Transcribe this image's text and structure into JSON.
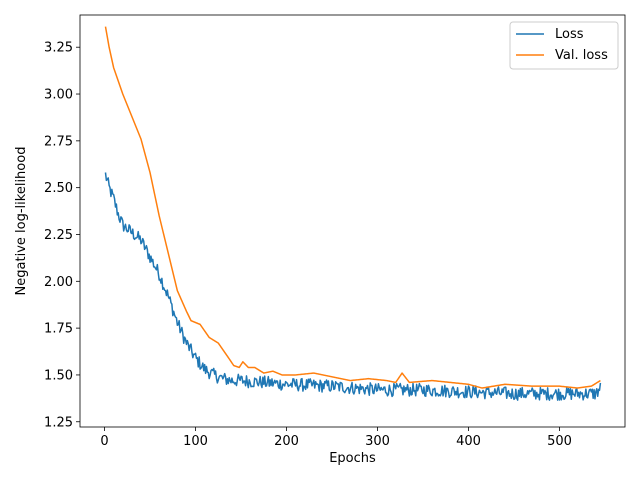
{
  "chart_data": {
    "type": "line",
    "title": "",
    "xlabel": "Epochs",
    "ylabel": "Negative log-likelihood",
    "xlim": [
      -27,
      572
    ],
    "ylim": [
      1.222,
      3.422
    ],
    "xticks": [
      0,
      100,
      200,
      300,
      400,
      500
    ],
    "yticks": [
      1.25,
      1.5,
      1.75,
      2.0,
      2.25,
      2.5,
      2.75,
      3.0,
      3.25
    ],
    "ytick_labels": [
      "1.25",
      "1.50",
      "1.75",
      "2.00",
      "2.25",
      "2.50",
      "2.75",
      "3.00",
      "3.25"
    ],
    "grid": false,
    "legend": "top-right",
    "series": [
      {
        "name": "Loss",
        "color": "#1f77b4",
        "noise_amplitude": 0.035,
        "anchors": [
          [
            1,
            2.57
          ],
          [
            5,
            2.5
          ],
          [
            10,
            2.44
          ],
          [
            15,
            2.36
          ],
          [
            20,
            2.3
          ],
          [
            30,
            2.26
          ],
          [
            40,
            2.22
          ],
          [
            50,
            2.13
          ],
          [
            60,
            2.04
          ],
          [
            70,
            1.92
          ],
          [
            80,
            1.78
          ],
          [
            90,
            1.67
          ],
          [
            100,
            1.59
          ],
          [
            110,
            1.53
          ],
          [
            120,
            1.5
          ],
          [
            130,
            1.48
          ],
          [
            140,
            1.47
          ],
          [
            150,
            1.47
          ],
          [
            175,
            1.46
          ],
          [
            200,
            1.45
          ],
          [
            250,
            1.44
          ],
          [
            300,
            1.42
          ],
          [
            350,
            1.42
          ],
          [
            400,
            1.41
          ],
          [
            450,
            1.4
          ],
          [
            500,
            1.4
          ],
          [
            540,
            1.4
          ],
          [
            545,
            1.43
          ]
        ]
      },
      {
        "name": "Val. loss",
        "color": "#ff7f0e",
        "anchors": [
          [
            1,
            3.36
          ],
          [
            5,
            3.25
          ],
          [
            10,
            3.14
          ],
          [
            20,
            3.0
          ],
          [
            30,
            2.88
          ],
          [
            40,
            2.76
          ],
          [
            50,
            2.58
          ],
          [
            60,
            2.35
          ],
          [
            70,
            2.15
          ],
          [
            80,
            1.95
          ],
          [
            90,
            1.84
          ],
          [
            95,
            1.79
          ],
          [
            105,
            1.77
          ],
          [
            115,
            1.7
          ],
          [
            125,
            1.67
          ],
          [
            135,
            1.6
          ],
          [
            142,
            1.55
          ],
          [
            148,
            1.54
          ],
          [
            152,
            1.57
          ],
          [
            158,
            1.54
          ],
          [
            165,
            1.54
          ],
          [
            175,
            1.51
          ],
          [
            185,
            1.52
          ],
          [
            195,
            1.5
          ],
          [
            210,
            1.5
          ],
          [
            230,
            1.51
          ],
          [
            250,
            1.49
          ],
          [
            270,
            1.47
          ],
          [
            290,
            1.48
          ],
          [
            310,
            1.47
          ],
          [
            320,
            1.46
          ],
          [
            327,
            1.51
          ],
          [
            335,
            1.46
          ],
          [
            360,
            1.47
          ],
          [
            380,
            1.46
          ],
          [
            400,
            1.45
          ],
          [
            415,
            1.43
          ],
          [
            440,
            1.45
          ],
          [
            470,
            1.44
          ],
          [
            500,
            1.44
          ],
          [
            520,
            1.43
          ],
          [
            535,
            1.44
          ],
          [
            545,
            1.47
          ]
        ]
      }
    ]
  }
}
